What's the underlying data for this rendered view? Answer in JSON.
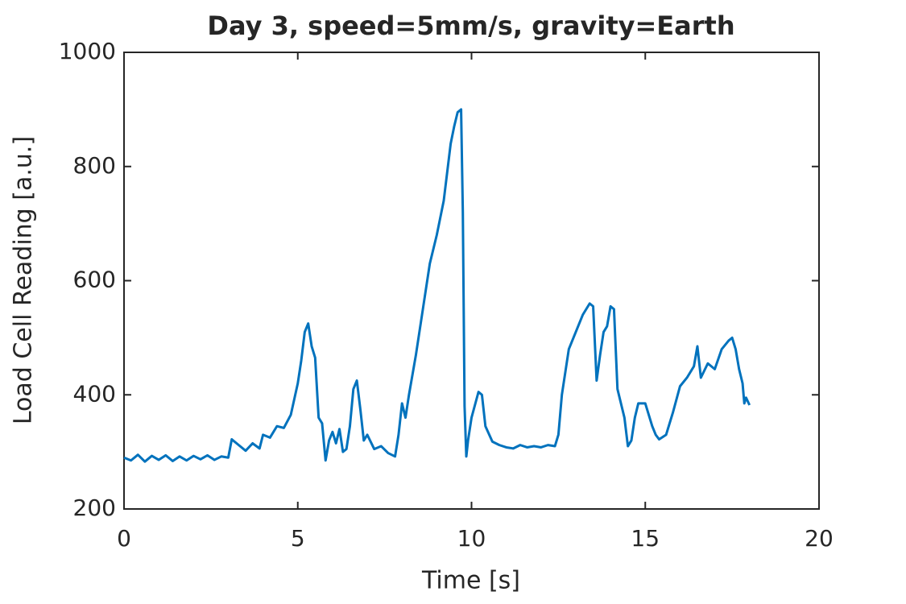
{
  "chart_data": {
    "type": "line",
    "title": "Day 3, speed=5mm/s, gravity=Earth",
    "x_label": "Time [s]",
    "y_label": "Load Cell Reading [a.u.]",
    "xlim": [
      0,
      20
    ],
    "xticks": [
      0,
      5,
      10,
      15,
      20
    ],
    "ylim": [
      200,
      1000
    ],
    "yticks": [
      200,
      400,
      600,
      800,
      1000
    ],
    "series": [
      {
        "color": "#0072bd",
        "x": [
          0,
          0.2,
          0.4,
          0.6,
          0.8,
          1.0,
          1.2,
          1.4,
          1.6,
          1.8,
          2.0,
          2.2,
          2.4,
          2.6,
          2.8,
          3.0,
          3.1,
          3.3,
          3.5,
          3.7,
          3.9,
          4.0,
          4.2,
          4.4,
          4.6,
          4.8,
          5.0,
          5.1,
          5.2,
          5.3,
          5.4,
          5.5,
          5.6,
          5.7,
          5.8,
          5.9,
          6.0,
          6.1,
          6.2,
          6.3,
          6.4,
          6.5,
          6.6,
          6.7,
          6.8,
          6.9,
          7.0,
          7.2,
          7.4,
          7.6,
          7.8,
          7.9,
          8.0,
          8.1,
          8.2,
          8.4,
          8.6,
          8.8,
          9.0,
          9.2,
          9.4,
          9.5,
          9.6,
          9.7,
          9.75,
          9.8,
          9.85,
          9.9,
          10.0,
          10.2,
          10.3,
          10.4,
          10.6,
          10.8,
          11.0,
          11.2,
          11.4,
          11.6,
          11.8,
          12.0,
          12.2,
          12.4,
          12.5,
          12.6,
          12.8,
          13.0,
          13.2,
          13.4,
          13.5,
          13.6,
          13.7,
          13.8,
          13.9,
          14.0,
          14.1,
          14.2,
          14.4,
          14.5,
          14.6,
          14.7,
          14.8,
          15.0,
          15.2,
          15.3,
          15.4,
          15.6,
          15.8,
          16.0,
          16.2,
          16.4,
          16.5,
          16.6,
          16.8,
          17.0,
          17.2,
          17.4,
          17.5,
          17.6,
          17.7,
          17.8,
          17.85,
          17.9,
          18.0
        ],
        "values": [
          290,
          285,
          295,
          283,
          293,
          286,
          294,
          284,
          292,
          285,
          293,
          287,
          294,
          286,
          292,
          290,
          322,
          312,
          302,
          315,
          306,
          330,
          325,
          345,
          342,
          365,
          420,
          460,
          510,
          525,
          485,
          465,
          360,
          350,
          285,
          320,
          335,
          315,
          340,
          300,
          305,
          345,
          410,
          425,
          375,
          320,
          330,
          305,
          310,
          298,
          292,
          330,
          385,
          360,
          400,
          470,
          550,
          630,
          680,
          740,
          840,
          870,
          895,
          900,
          720,
          380,
          292,
          320,
          360,
          405,
          400,
          345,
          318,
          312,
          308,
          306,
          312,
          308,
          310,
          308,
          312,
          310,
          330,
          400,
          480,
          510,
          540,
          560,
          555,
          425,
          470,
          510,
          520,
          555,
          550,
          410,
          360,
          310,
          320,
          360,
          385,
          385,
          345,
          330,
          322,
          330,
          370,
          415,
          430,
          450,
          485,
          430,
          455,
          445,
          480,
          495,
          500,
          480,
          445,
          420,
          385,
          395,
          382
        ]
      }
    ]
  }
}
